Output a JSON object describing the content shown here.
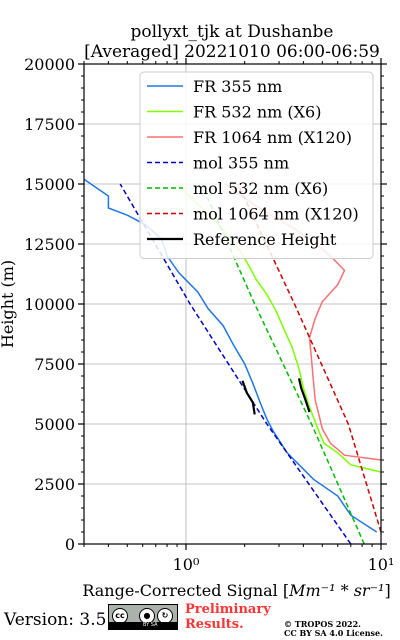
{
  "chart_data": {
    "type": "line",
    "title_line1": "pollyxt_tjk at Dushanbe",
    "title_line2": "[Averaged] 20221010 06:00-06:59",
    "xlabel_prefix": "Range-Corrected Signal [",
    "xlabel_unit": "Mm⁻¹ * sr⁻¹",
    "xlabel_suffix": "]",
    "ylabel": "Height (m)",
    "xscale": "log",
    "xlim": [
      0.3,
      10
    ],
    "ylim": [
      0,
      20000
    ],
    "xticks": [
      {
        "value": 1,
        "label": "10⁰"
      },
      {
        "value": 10,
        "label": "10¹"
      }
    ],
    "yticks": [
      0,
      2500,
      5000,
      7500,
      10000,
      12500,
      15000,
      17500,
      20000
    ],
    "ytick_labels": [
      "0",
      "2500",
      "5000",
      "7500",
      "10000",
      "12500",
      "15000",
      "17500",
      "20000"
    ],
    "grid": true,
    "legend_position": "top-right",
    "series": [
      {
        "name": "FR 355 nm",
        "color": "#1f77e4",
        "style": "solid",
        "points": [
          [
            9.5,
            500
          ],
          [
            7,
            1200
          ],
          [
            6,
            2000
          ],
          [
            4.5,
            2700
          ],
          [
            3.3,
            3800
          ],
          [
            2.8,
            4700
          ],
          [
            2.6,
            5200
          ],
          [
            2.4,
            5900
          ],
          [
            2.2,
            6700
          ],
          [
            2.0,
            7500
          ],
          [
            1.75,
            8300
          ],
          [
            1.55,
            9100
          ],
          [
            1.3,
            9800
          ],
          [
            1.15,
            10500
          ],
          [
            0.92,
            11300
          ],
          [
            0.8,
            12000
          ],
          [
            0.75,
            12700
          ],
          [
            0.62,
            13300
          ],
          [
            0.5,
            13700
          ],
          [
            0.4,
            14000
          ],
          [
            0.4,
            14500
          ],
          [
            0.3,
            15200
          ]
        ]
      },
      {
        "name": "FR 532 nm (X6)",
        "color": "#7fff00",
        "style": "solid",
        "points": [
          [
            10,
            3000
          ],
          [
            7,
            3300
          ],
          [
            6,
            3800
          ],
          [
            5.1,
            4200
          ],
          [
            4.8,
            4700
          ],
          [
            4.6,
            5100
          ],
          [
            4.3,
            5700
          ],
          [
            4.0,
            6500
          ],
          [
            3.8,
            7300
          ],
          [
            3.5,
            8200
          ],
          [
            3.2,
            8900
          ],
          [
            2.9,
            9700
          ],
          [
            2.6,
            10400
          ],
          [
            2.3,
            11000
          ],
          [
            2.1,
            11600
          ],
          [
            1.9,
            12200
          ],
          [
            1.7,
            12700
          ],
          [
            1.4,
            13500
          ],
          [
            1.1,
            14300
          ],
          [
            0.9,
            15000
          ]
        ]
      },
      {
        "name": "FR 1064 nm (X120)",
        "color": "#f87072",
        "style": "solid",
        "points": [
          [
            10,
            3500
          ],
          [
            6.5,
            3700
          ],
          [
            5.5,
            4200
          ],
          [
            5.0,
            4800
          ],
          [
            4.8,
            5400
          ],
          [
            4.6,
            6000
          ],
          [
            4.5,
            6800
          ],
          [
            4.4,
            7700
          ],
          [
            4.3,
            8600
          ],
          [
            4.6,
            9400
          ],
          [
            5.0,
            10100
          ],
          [
            6.0,
            10800
          ],
          [
            6.5,
            11400
          ],
          [
            5.5,
            12000
          ],
          [
            4.5,
            12600
          ],
          [
            3.5,
            13200
          ],
          [
            2.6,
            13800
          ],
          [
            2.0,
            14400
          ],
          [
            1.6,
            15000
          ]
        ]
      },
      {
        "name": "mol 355 nm",
        "color": "#0000cc",
        "style": "dashed",
        "points": [
          [
            7.0,
            0
          ],
          [
            2.6,
            5000
          ],
          [
            1.05,
            10000
          ],
          [
            0.46,
            15000
          ]
        ]
      },
      {
        "name": "mol 532 nm (X6)",
        "color": "#00bb00",
        "style": "dashed",
        "points": [
          [
            8.2,
            0
          ],
          [
            4.4,
            5000
          ],
          [
            2.25,
            10000
          ],
          [
            1.2,
            15000
          ]
        ]
      },
      {
        "name": "mol 1064 nm (X120)",
        "color": "#cc0000",
        "style": "dashed",
        "points": [
          [
            10,
            500
          ],
          [
            6.8,
            5000
          ],
          [
            3.6,
            10000
          ],
          [
            1.85,
            15000
          ]
        ]
      },
      {
        "name": "Reference Height",
        "color": "#000000",
        "style": "solid",
        "points": [
          [
            2.25,
            5400
          ],
          [
            2.2,
            5900
          ],
          [
            2.05,
            6300
          ],
          [
            1.95,
            6800
          ]
        ],
        "points_b": [
          [
            4.3,
            5500
          ],
          [
            4.1,
            6000
          ],
          [
            3.9,
            6500
          ],
          [
            3.8,
            6900
          ]
        ]
      }
    ]
  },
  "footer": {
    "version": "Version: 3.5",
    "license_badge": {
      "text": "BY   SA"
    },
    "preliminary_line1": "Preliminary",
    "preliminary_line2": "Results.",
    "copyright_line1": "© TROPOS 2022.",
    "copyright_line2": "CC BY SA 4.0 License."
  }
}
